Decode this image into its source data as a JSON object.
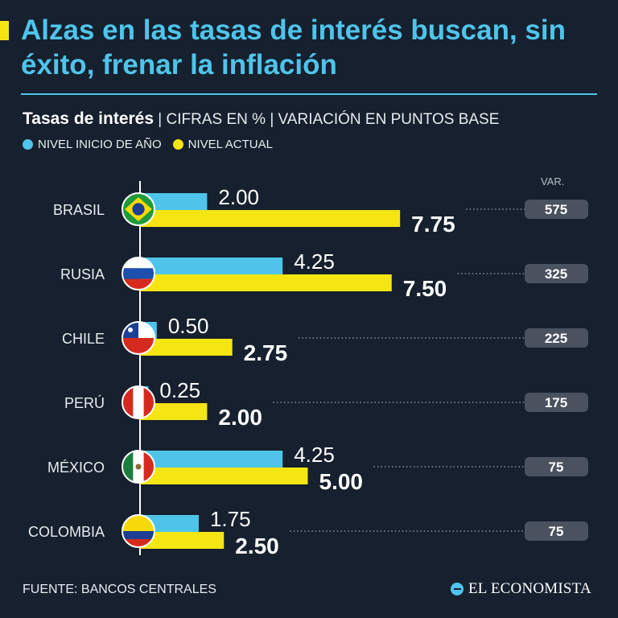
{
  "header": {
    "title": "Alzas en las tasas de interés buscan, sin éxito, frenar la inflación",
    "subtitle_bold": "Tasas de interés",
    "subtitle_rest": " | CIFRAS EN % | VARIACIÓN EN PUNTOS BASE"
  },
  "legend": {
    "start_label": "NIVEL INICIO DE AÑO",
    "current_label": "NIVEL ACTUAL"
  },
  "var_header": "VAR.",
  "colors": {
    "start": "#4fc4ea",
    "current": "#f5e513",
    "background": "#16202e",
    "pill": "#4a5260"
  },
  "chart_data": {
    "type": "bar",
    "orientation": "horizontal",
    "categories": [
      "BRASIL",
      "RUSIA",
      "CHILE",
      "PERÚ",
      "MÉXICO",
      "COLOMBIA"
    ],
    "series": [
      {
        "name": "NIVEL INICIO DE AÑO",
        "values": [
          2.0,
          4.25,
          0.5,
          0.25,
          4.25,
          1.75
        ],
        "labels": [
          "2.00",
          "4.25",
          "0.50",
          "0.25",
          "4.25",
          "1.75"
        ]
      },
      {
        "name": "NIVEL ACTUAL",
        "values": [
          7.75,
          7.5,
          2.75,
          2.0,
          5.0,
          2.5
        ],
        "labels": [
          "7.75",
          "7.50",
          "2.75",
          "2.00",
          "5.00",
          "2.50"
        ]
      }
    ],
    "variation": [
      "575",
      "325",
      "225",
      "175",
      "75",
      "75"
    ],
    "flags": [
      "brazil-flag-icon",
      "russia-flag-icon",
      "chile-flag-icon",
      "peru-flag-icon",
      "mexico-flag-icon",
      "colombia-flag-icon"
    ],
    "xlim": [
      0,
      8
    ]
  },
  "footer": {
    "source": "FUENTE: BANCOS CENTRALES",
    "brand": "EL ECONOMISTA"
  }
}
